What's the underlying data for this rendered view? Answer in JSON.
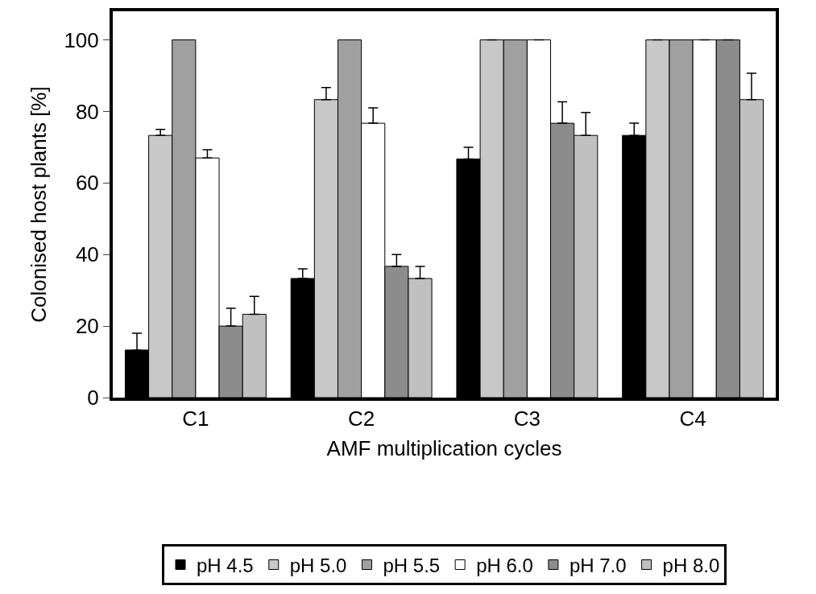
{
  "chart_data": {
    "type": "bar",
    "xlabel": "AMF multiplication cycles",
    "ylabel": "Colonised host plants [%]",
    "categories": [
      "C1",
      "C2",
      "C3",
      "C4"
    ],
    "series": [
      {
        "name": "pH 4.5",
        "color": "#000000",
        "values": [
          13.3,
          33.3,
          66.7,
          73.3
        ],
        "errors": [
          [
            13.3,
            18
          ],
          [
            33.3,
            36
          ],
          [
            66.7,
            70
          ],
          [
            73.3,
            76.7
          ]
        ]
      },
      {
        "name": "pH 5.0",
        "color": "#c8c8c8",
        "values": [
          73.3,
          83.3,
          100,
          100
        ],
        "errors": [
          [
            73.3,
            75
          ],
          [
            83.3,
            86.7
          ],
          null,
          null
        ]
      },
      {
        "name": "pH 5.5",
        "color": "#a0a0a0",
        "values": [
          100,
          100,
          100,
          100
        ]
      },
      {
        "name": "pH 6.0",
        "color": "#ffffff",
        "values": [
          67,
          76.7,
          100,
          100
        ],
        "errors": [
          [
            67,
            69.3
          ],
          [
            76.7,
            81
          ],
          null,
          null
        ]
      },
      {
        "name": "pH 7.0",
        "color": "#8c8c8c",
        "values": [
          20,
          36.7,
          76.7,
          100
        ],
        "errors": [
          [
            20,
            25
          ],
          [
            36.7,
            40
          ],
          [
            76.7,
            82.7
          ],
          null
        ]
      },
      {
        "name": "pH 8.0",
        "color": "#c0c0c0",
        "values": [
          23.3,
          33.3,
          73.3,
          83.3
        ],
        "errors": [
          [
            23.3,
            28.3
          ],
          [
            33.3,
            36.7
          ],
          [
            73.3,
            79.7
          ],
          [
            83.3,
            90.7
          ]
        ]
      }
    ],
    "ylim": [
      0,
      108
    ],
    "yticks": [
      0,
      20,
      40,
      60,
      80,
      100
    ],
    "legend": "bottom"
  }
}
